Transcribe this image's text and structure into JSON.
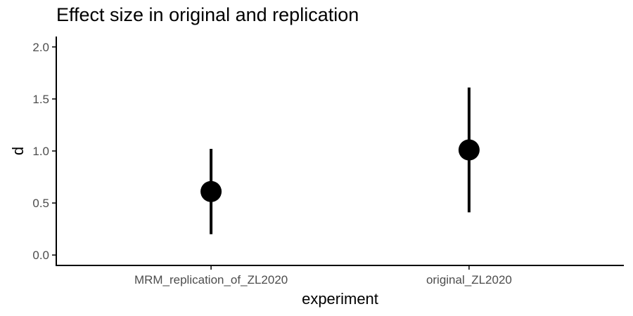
{
  "chart_data": {
    "type": "scatter",
    "title": "Effect size in original and replication",
    "xlabel": "experiment",
    "ylabel": "d",
    "categories": [
      "MRM_replication_of_ZL2020",
      "original_ZL2020"
    ],
    "series": [
      {
        "values": [
          0.61,
          1.01
        ],
        "lower": [
          0.2,
          0.41
        ],
        "upper": [
          1.02,
          1.61
        ]
      }
    ],
    "ylim": [
      -0.1,
      2.1
    ],
    "yticks": [
      0.0,
      0.5,
      1.0,
      1.5,
      2.0
    ],
    "ytick_labels": [
      "0.0",
      "0.5",
      "1.0",
      "1.5",
      "2.0"
    ],
    "grid": false,
    "colors": {
      "points": "#000000",
      "axis": "#000000",
      "tick_text": "#4d4d4d"
    }
  }
}
